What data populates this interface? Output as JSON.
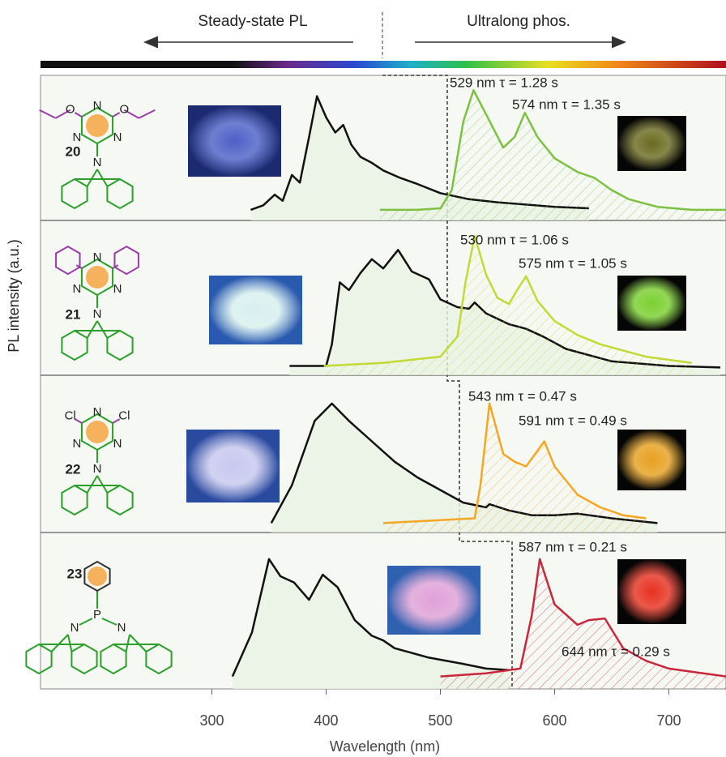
{
  "figure": {
    "left_label": "Steady-state PL",
    "right_label": "Ultralong phos.",
    "ylabel": "PL intensity (a.u.)"
  },
  "chart_data": [
    {
      "type": "line",
      "compound": "20",
      "atoms": [
        "O",
        "N",
        "O",
        "N",
        "N",
        "N"
      ],
      "annotations": [
        "529 nm  τ = 1.28 s",
        "574 nm  τ = 1.35 s"
      ],
      "xlim": [
        150,
        750
      ],
      "ylim": [
        0,
        100
      ],
      "series": [
        {
          "color": "#111111",
          "x": [
            334,
            345,
            355,
            362,
            370,
            377,
            385,
            392,
            400,
            408,
            415,
            422,
            430,
            440,
            450,
            465,
            480,
            500,
            525,
            550,
            600,
            630
          ],
          "values": [
            7,
            10,
            17,
            13,
            30,
            25,
            55,
            82,
            68,
            58,
            63,
            50,
            42,
            38,
            33,
            28,
            24,
            18,
            14,
            12,
            9,
            8
          ]
        },
        {
          "color": "#7cc142",
          "x": [
            447,
            480,
            500,
            510,
            520,
            529,
            540,
            555,
            565,
            574,
            585,
            600,
            620,
            635,
            650,
            665,
            690,
            720,
            750
          ],
          "values": [
            7,
            7,
            8,
            20,
            65,
            86,
            70,
            48,
            55,
            71,
            55,
            41,
            32,
            28,
            20,
            14,
            9,
            7,
            7
          ]
        }
      ]
    },
    {
      "type": "line",
      "compound": "21",
      "atoms": [
        "N",
        "N",
        "N",
        "N"
      ],
      "annotations": [
        "530 nm  τ = 1.06 s",
        "575 nm  τ = 1.05 s"
      ],
      "xlim": [
        150,
        750
      ],
      "ylim": [
        0,
        100
      ],
      "series": [
        {
          "color": "#111111",
          "x": [
            368,
            400,
            405,
            412,
            420,
            430,
            440,
            450,
            463,
            475,
            490,
            500,
            515,
            525,
            530,
            540,
            560,
            575,
            590,
            610,
            650,
            700,
            745
          ],
          "values": [
            6,
            6,
            20,
            60,
            55,
            66,
            75,
            69,
            81,
            67,
            62,
            49,
            44,
            43,
            47,
            40,
            33,
            30,
            25,
            17,
            9,
            6,
            5
          ]
        },
        {
          "color": "#c3d934",
          "x": [
            398,
            450,
            500,
            515,
            522,
            530,
            540,
            550,
            560,
            568,
            575,
            585,
            600,
            620,
            640,
            680,
            720
          ],
          "values": [
            6,
            8,
            12,
            25,
            60,
            90,
            65,
            50,
            46,
            56,
            64,
            48,
            35,
            26,
            20,
            12,
            8
          ]
        }
      ]
    },
    {
      "type": "line",
      "compound": "22",
      "atoms": [
        "Cl",
        "N",
        "Cl",
        "N",
        "N",
        "N"
      ],
      "annotations": [
        "543 nm  τ = 0.47 s",
        "591 nm  τ = 0.49 s"
      ],
      "xlim": [
        150,
        750
      ],
      "ylim": [
        0,
        100
      ],
      "series": [
        {
          "color": "#111111",
          "x": [
            352,
            370,
            390,
            405,
            420,
            440,
            460,
            480,
            500,
            520,
            540,
            543,
            560,
            580,
            600,
            620,
            650,
            690
          ],
          "values": [
            6,
            30,
            71,
            82,
            71,
            58,
            45,
            35,
            27,
            19,
            16,
            18,
            14,
            11,
            11,
            12,
            9,
            6
          ]
        },
        {
          "color": "#f5a623",
          "x": [
            450,
            530,
            535,
            543,
            555,
            565,
            575,
            591,
            600,
            620,
            640,
            660,
            680
          ],
          "values": [
            6,
            9,
            30,
            82,
            50,
            45,
            42,
            58,
            42,
            24,
            16,
            11,
            9
          ]
        }
      ]
    },
    {
      "type": "line",
      "compound": "23",
      "atoms": [
        "P",
        "N",
        "N"
      ],
      "annotations": [
        "587 nm  τ = 0.21 s",
        "644 nm  τ = 0.29 s"
      ],
      "xlim": [
        150,
        750
      ],
      "ylim": [
        0,
        100
      ],
      "xlabel": "Wavelength (nm)",
      "xticks": [
        300,
        400,
        500,
        600,
        700
      ],
      "series": [
        {
          "color": "#111111",
          "x": [
            318,
            335,
            350,
            360,
            372,
            385,
            397,
            410,
            425,
            440,
            450,
            460,
            475,
            490,
            520,
            540,
            560
          ],
          "values": [
            8,
            36,
            83,
            72,
            68,
            57,
            73,
            65,
            44,
            34,
            31,
            26,
            23,
            20,
            16,
            13,
            12
          ]
        },
        {
          "color": "#c8283a",
          "x": [
            500,
            540,
            570,
            580,
            587,
            600,
            620,
            630,
            644,
            660,
            680,
            700,
            730,
            750
          ],
          "values": [
            8,
            10,
            13,
            47,
            83,
            54,
            41,
            44,
            45,
            26,
            18,
            13,
            10,
            8
          ]
        }
      ]
    }
  ]
}
